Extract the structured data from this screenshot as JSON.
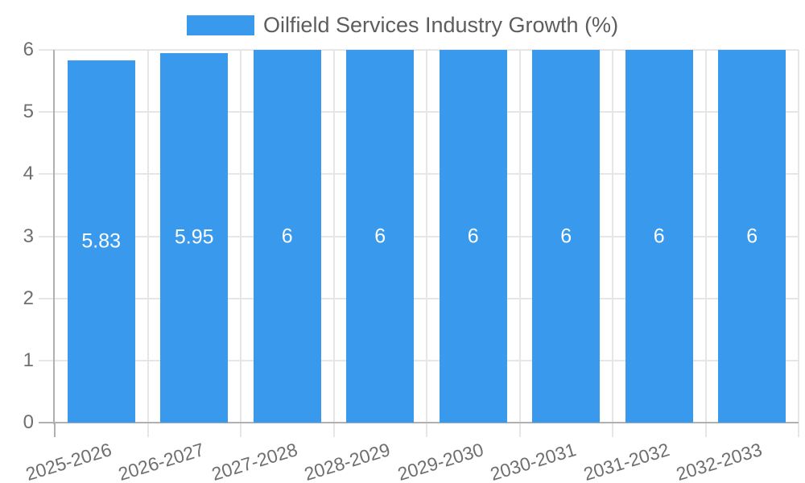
{
  "legend": {
    "label": "Oilfield Services Industry Growth (%)"
  },
  "colors": {
    "bar": "#3999EC",
    "grid": "#E6E6E6",
    "axis": "#B0B0B0",
    "tick_text": "#6F6F6F",
    "legend_text": "#5D5D5D",
    "value_text": "#FFFFFF",
    "background": "#FFFFFF"
  },
  "chart_data": {
    "type": "bar",
    "title": "",
    "legend": "Oilfield Services Industry Growth (%)",
    "legend_position": "top",
    "categories": [
      "2025-2026",
      "2026-2027",
      "2027-2028",
      "2028-2029",
      "2029-2030",
      "2030-2031",
      "2031-2032",
      "2032-2033"
    ],
    "values": [
      5.83,
      5.95,
      6,
      6,
      6,
      6,
      6,
      6
    ],
    "value_labels": [
      "5.83",
      "5.95",
      "6",
      "6",
      "6",
      "6",
      "6",
      "6"
    ],
    "xlabel": "",
    "ylabel": "",
    "ylim": [
      0,
      6
    ],
    "yticks": [
      0,
      1,
      2,
      3,
      4,
      5,
      6
    ],
    "grid": true,
    "x_label_rotation_deg": -17,
    "bar_color": "#3999EC"
  }
}
